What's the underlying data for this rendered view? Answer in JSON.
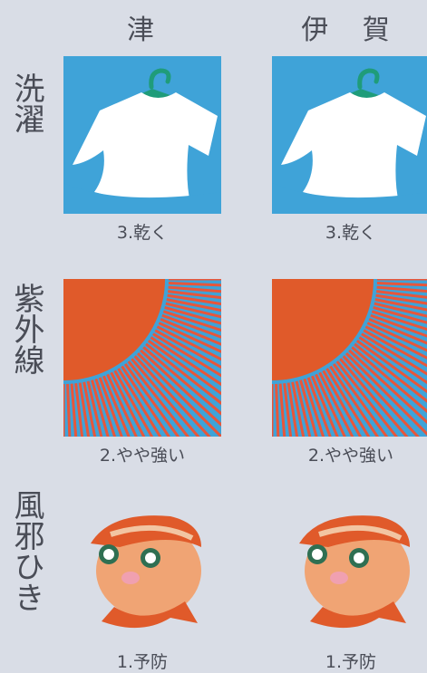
{
  "columns": [
    "津",
    "伊 賀"
  ],
  "rows": [
    {
      "label": "洗濯",
      "icon": "t-shirt-on-hanger-icon",
      "values": [
        "3.乾く",
        "3.乾く"
      ]
    },
    {
      "label": "紫外線",
      "icon": "sun-rays-icon",
      "values": [
        "2.やや強い",
        "2.やや強い"
      ]
    },
    {
      "label": "風邪ひき",
      "icon": "child-face-with-scarf-icon",
      "values": [
        "1.予防",
        "1.予防"
      ]
    }
  ],
  "colors": {
    "sky": "#3fa3d8",
    "sun": "#e05a2a",
    "ray": "#e8563a",
    "shirt": "#ffffff",
    "hanger": "#1f9c7a"
  }
}
